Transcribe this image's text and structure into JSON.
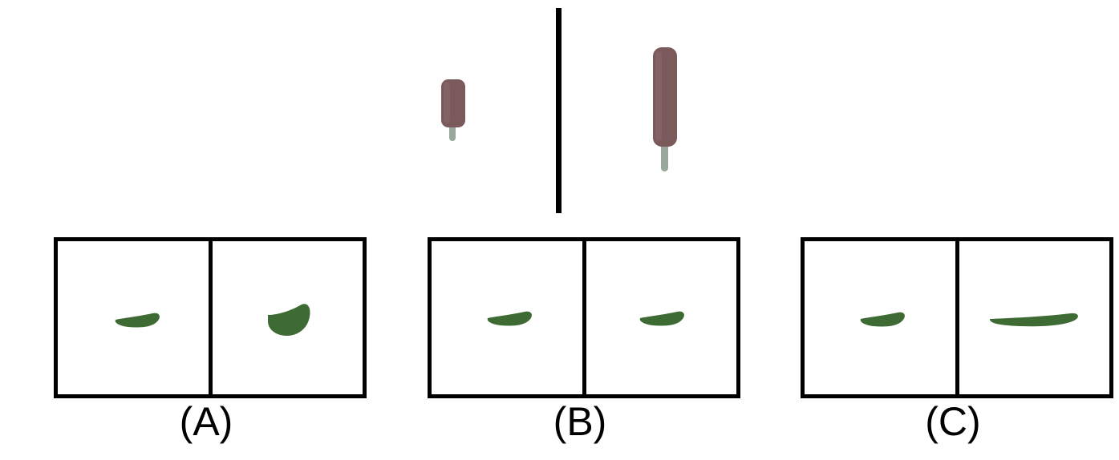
{
  "example": {
    "left": {
      "shape": "popsicle",
      "color": "#7b5a5c",
      "stick_color": "#98a89c",
      "scale": "small"
    },
    "right": {
      "shape": "popsicle",
      "color": "#7b5a5c",
      "stick_color": "#98a89c",
      "scale": "large"
    }
  },
  "options": [
    {
      "label": "(A)",
      "left": {
        "shape": "bean",
        "color": "#3e6b33"
      },
      "right": {
        "shape": "bean-wide",
        "color": "#3e6b33"
      }
    },
    {
      "label": "(B)",
      "left": {
        "shape": "bean",
        "color": "#3e6b33"
      },
      "right": {
        "shape": "bean",
        "color": "#3e6b33"
      }
    },
    {
      "label": "(C)",
      "left": {
        "shape": "bean",
        "color": "#3e6b33"
      },
      "right": {
        "shape": "bean-long",
        "color": "#3e6b33"
      }
    }
  ]
}
